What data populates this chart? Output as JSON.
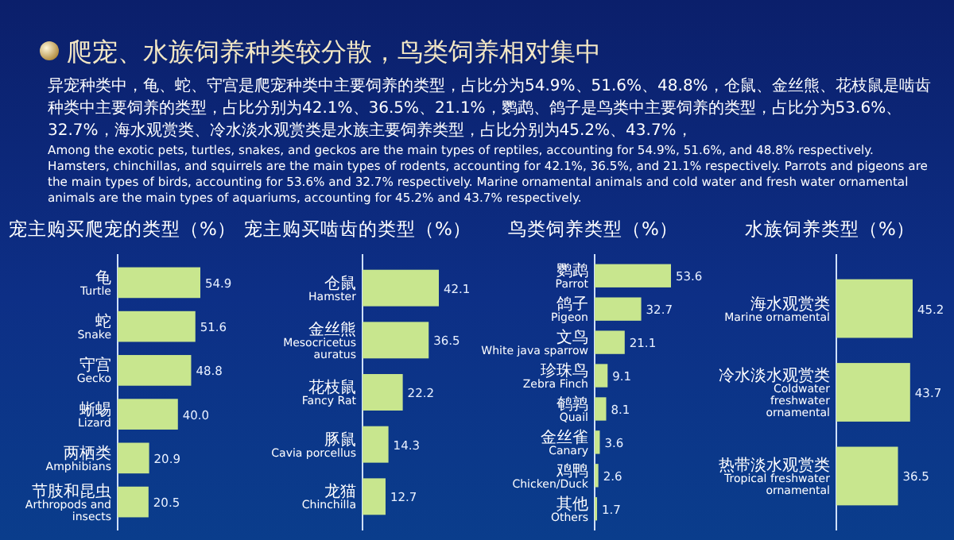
{
  "chart_data": [
    {
      "type": "bar",
      "orientation": "horizontal",
      "title": "宠主购买爬宠的类型（%）",
      "categories": [
        "龟\nTurtle",
        "蛇\nSnake",
        "守宫\nGecko",
        "蜥蜴\nLizard",
        "两栖类\nAmphibians",
        "节肢和昆虫\nArthropods and insects"
      ],
      "values": [
        54.9,
        51.6,
        48.8,
        40.0,
        20.9,
        20.5
      ],
      "value_labels": [
        "54.9",
        "51.6",
        "48.8",
        "40.0",
        "20.9",
        "20.5"
      ],
      "color": "#c8e68e",
      "annotations": [
        "爬宠、水族饲养种类较分散，鸟类饲养相对集中",
        "异宠种类中，龟、蛇、守宫是爬宠种类中主要饲养的类型，占比分为54.9%、51.6%、48.8%，仓鼠、金丝熊、花枝鼠是啮齿种类中主要饲养的类型，占比分别为42.1%、36.5%、21.1%，鹦鹉、鸽子是鸟类中主要饲养的类型，占比分为53.6%、32.7%，海水观赏类、冷水淡水观赏类是水族主要饲养类型，占比分别为45.2%、43.7%，",
        "Among the exotic pets, turtles, snakes, and geckos are the main types of reptiles, accounting for 54.9%, 51.6%, and 48.8% respectively. Hamsters, chinchillas, and squirrels are the main types of rodents, accounting for 42.1%, 36.5%, and 21.1% respectively. Parrots and pigeons are the main types of birds, accounting for 53.6% and 32.7% respectively. Marine ornamental animals and cold water and fresh water ornamental animals are the main types of aquariums, accounting for 45.2% and 43.7% respectively."
      ]
    },
    {
      "type": "bar",
      "orientation": "horizontal",
      "title": "宠主购买啮齿的类型（%）",
      "categories": [
        "仓鼠\nHamster",
        "金丝熊\nMesocricetus auratus",
        "花枝鼠\nFancy Rat",
        "豚鼠\nCavia porcellus",
        "龙猫\nChinchilla"
      ],
      "values": [
        42.1,
        36.5,
        22.2,
        14.3,
        12.7
      ],
      "value_labels": [
        "42.1",
        "36.5",
        "22.2",
        "14.3",
        "12.7"
      ],
      "color": "#c8e68e"
    },
    {
      "type": "bar",
      "orientation": "horizontal",
      "title": "鸟类饲养类型（%）",
      "categories": [
        "鹦鹉\nParrot",
        "鸽子\nPigeon",
        "文鸟\nWhite java sparrow",
        "珍珠鸟\nZebra Finch",
        "鹌鹑\nQuail",
        "金丝雀\nCanary",
        "鸡鸭\nChicken/Duck",
        "其他\nOthers"
      ],
      "values": [
        53.6,
        32.7,
        21.1,
        9.1,
        8.1,
        3.6,
        2.6,
        1.7
      ],
      "value_labels": [
        "53.6",
        "32.7",
        "21.1",
        "9.1",
        "8.1",
        "3.6",
        "2.6",
        "1.7"
      ],
      "color": "#c8e68e"
    },
    {
      "type": "bar",
      "orientation": "horizontal",
      "title": "水族饲养类型（%）",
      "categories": [
        "海水观赏类\nMarine ornamental",
        "冷水淡水观赏类\nColdwater freshwater ornamental",
        "热带淡水观赏类\nTropical freshwater ornamental"
      ],
      "values": [
        45.2,
        43.7,
        36.5
      ],
      "value_labels": [
        "45.2",
        "43.7",
        "36.5"
      ],
      "color": "#c8e68e"
    }
  ]
}
